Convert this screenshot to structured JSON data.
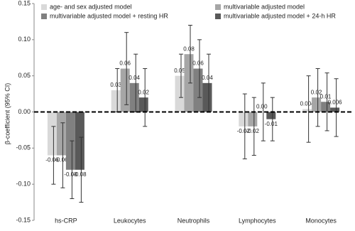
{
  "chart_data": {
    "type": "bar",
    "y_label": "β-coefficient (95% CI)",
    "categories": [
      "hs-CRP",
      "Leukocytes",
      "Neutrophils",
      "Lymphocytes",
      "Monocytes"
    ],
    "series": [
      {
        "name": "age- and sex adjusted model",
        "color": "#d9d9d9",
        "values": [
          -0.06,
          0.03,
          0.05,
          -0.02,
          0.004
        ],
        "value_labels": [
          "-0.06",
          "0.03",
          "0.05",
          "-0.02",
          "0.004"
        ],
        "errors": [
          0.04,
          0.03,
          0.03,
          0.045,
          0.046
        ]
      },
      {
        "name": "multivariable adjusted model",
        "color": "#a6a6a6",
        "values": [
          -0.06,
          0.06,
          0.08,
          -0.02,
          0.02
        ],
        "value_labels": [
          "-0.06",
          "0.06",
          "0.08",
          "-0.02",
          "0.02"
        ],
        "errors": [
          0.045,
          0.05,
          0.04,
          0.04,
          0.04
        ]
      },
      {
        "name": "multivariable adjusted model + resting HR",
        "color": "#808080",
        "values": [
          -0.08,
          0.04,
          0.06,
          0,
          0.014
        ],
        "value_labels": [
          "-0.08",
          "0.04",
          "0.06",
          "0.00",
          "0.01"
        ],
        "errors": [
          0.04,
          0.04,
          0.04,
          0.04,
          0.04
        ]
      },
      {
        "name": "multivariable adjusted model + 24-h HR",
        "color": "#595959",
        "values": [
          -0.08,
          0.02,
          0.04,
          -0.01,
          0.006
        ],
        "value_labels": [
          "-0.08",
          "0.02",
          "0.04",
          "-0.01",
          "0.006"
        ],
        "errors": [
          0.045,
          0.04,
          0.04,
          0.03,
          0.04
        ]
      }
    ],
    "ylim": [
      -0.15,
      0.15
    ],
    "yticks": [
      -0.15,
      {
        "value": -0.1,
        "label": "-0.10"
      },
      -0.05,
      {
        "value": 0,
        "label": "0.00"
      },
      0.05,
      {
        "value": 0.1,
        "label": "0.10"
      },
      0.15
    ]
  }
}
